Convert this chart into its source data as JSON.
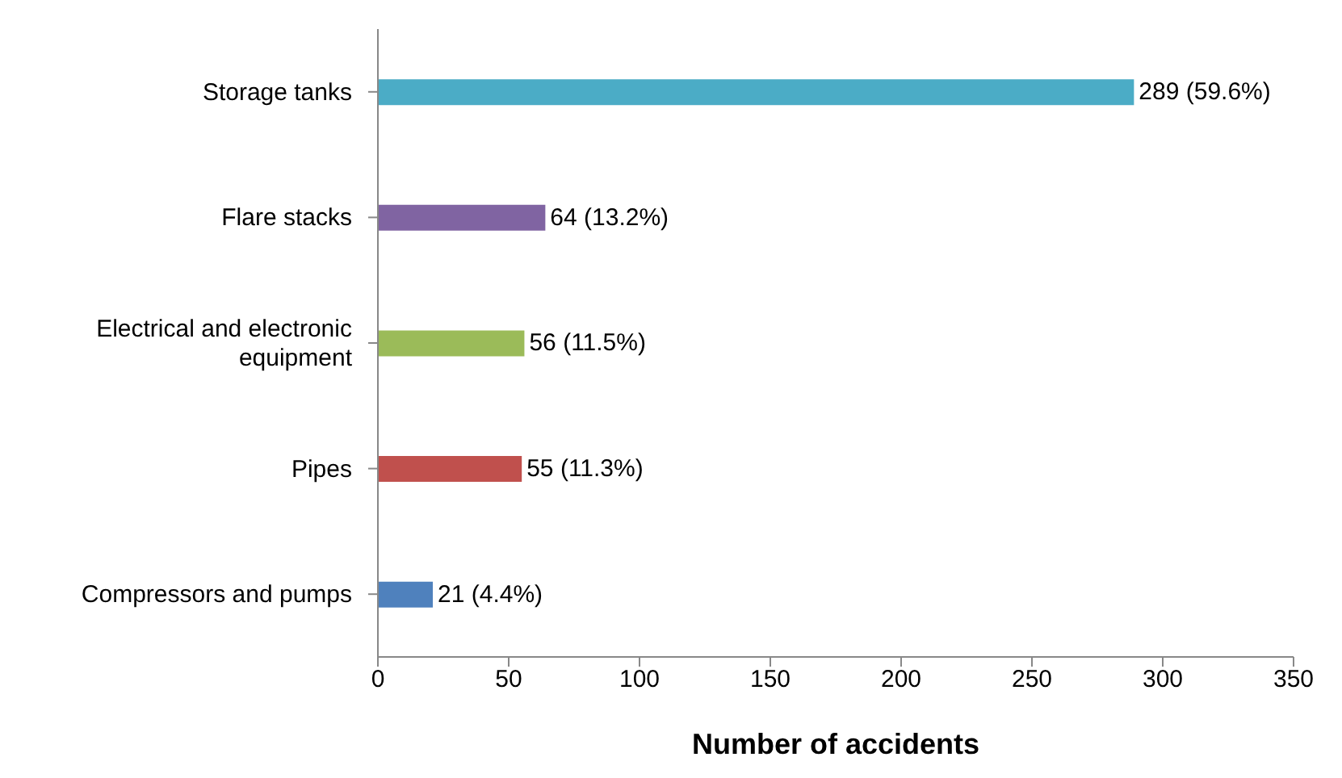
{
  "chart_data": {
    "type": "bar",
    "orientation": "horizontal",
    "categories": [
      "Storage tanks",
      "Flare stacks",
      "Electrical and electronic equipment",
      "Pipes",
      "Compressors and pumps"
    ],
    "values": [
      289,
      64,
      56,
      55,
      21
    ],
    "colors": [
      "#4bacc6",
      "#8064a2",
      "#9bbb59",
      "#c0504d",
      "#4f81bd"
    ],
    "value_labels": [
      "289 (59.6%)",
      "64 (13.2%)",
      "56 (11.5%)",
      "55 (11.3%)",
      "21 (4.4%)"
    ],
    "xlim": [
      0,
      350
    ],
    "xticks": [
      0,
      50,
      100,
      150,
      200,
      250,
      300,
      350
    ],
    "xlabel": "Number of accidents",
    "grid": false,
    "legend": false
  }
}
